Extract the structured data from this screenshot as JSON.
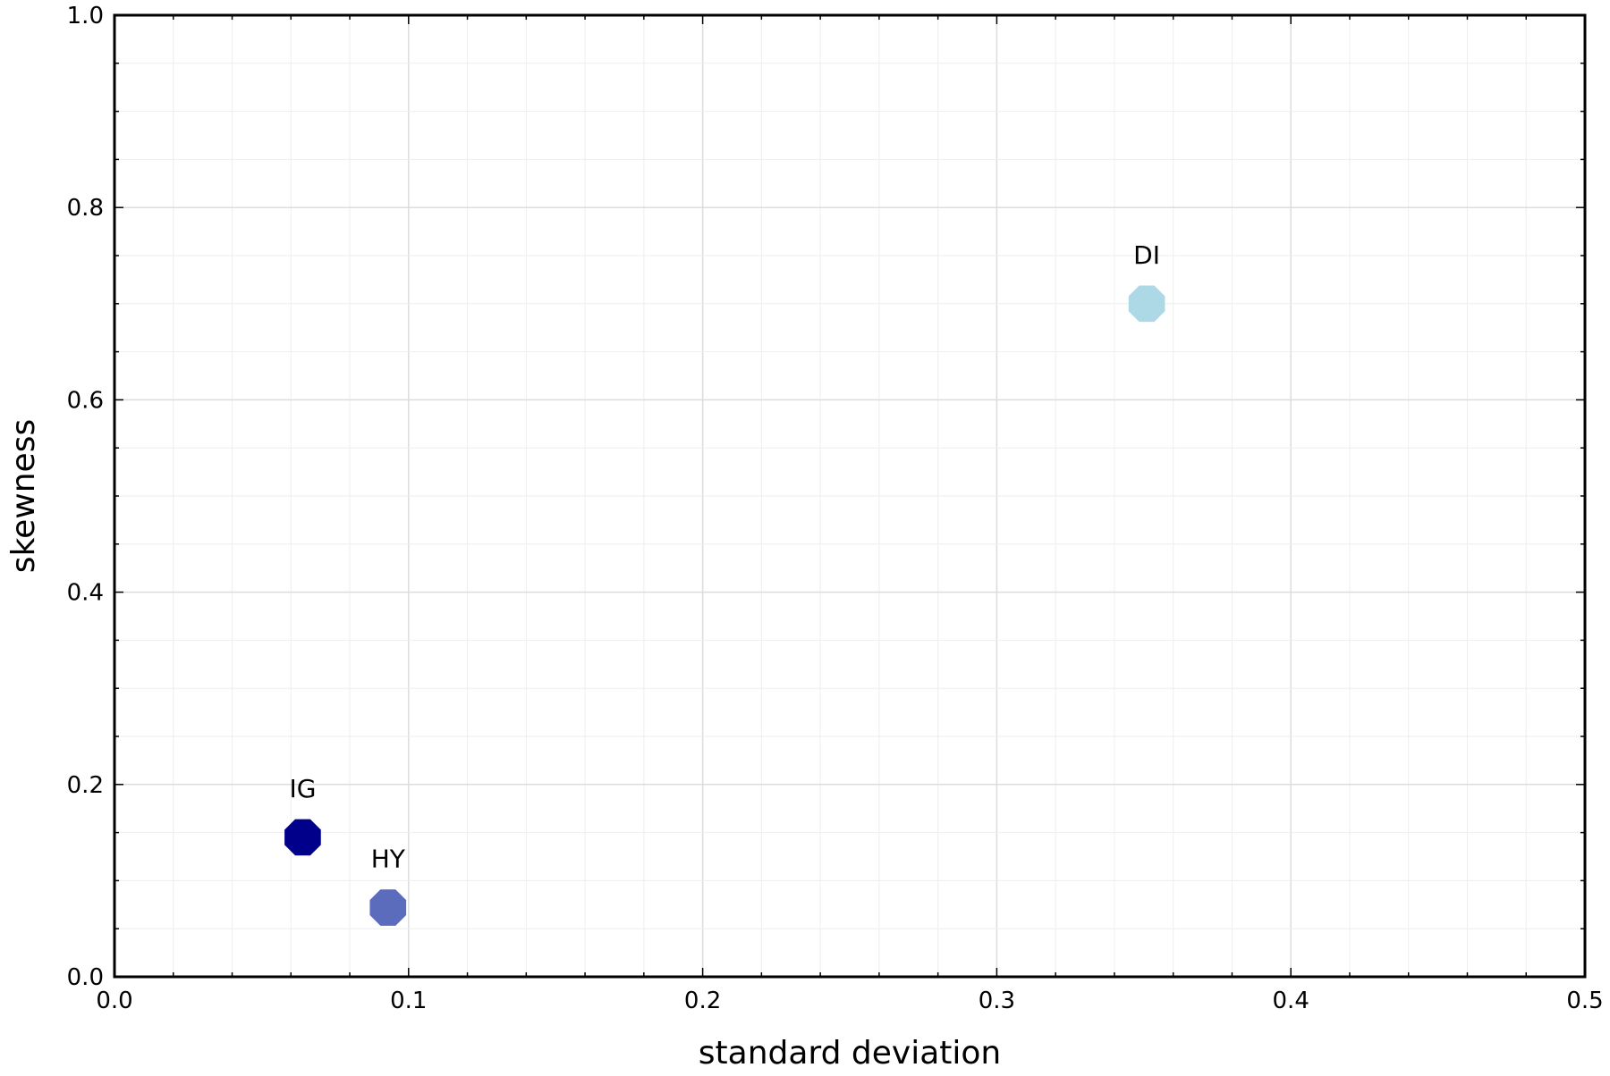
{
  "chart_data": {
    "type": "scatter",
    "title": "",
    "xlabel": "standard deviation",
    "ylabel": "skewness",
    "xlim": [
      0.0,
      0.5
    ],
    "ylim": [
      0.0,
      1.0
    ],
    "x_ticks": [
      "0.0",
      "0.1",
      "0.2",
      "0.3",
      "0.4",
      "0.5"
    ],
    "y_ticks": [
      "0.0",
      "0.2",
      "0.4",
      "0.6",
      "0.8",
      "1.0"
    ],
    "grid": true,
    "legend": "none",
    "points": [
      {
        "label": "IG",
        "x": 0.064,
        "y": 0.145,
        "color": "#00008b"
      },
      {
        "label": "HY",
        "x": 0.093,
        "y": 0.072,
        "color": "#5a6cbb"
      },
      {
        "label": "DI",
        "x": 0.351,
        "y": 0.7,
        "color": "#add8e6"
      }
    ]
  }
}
